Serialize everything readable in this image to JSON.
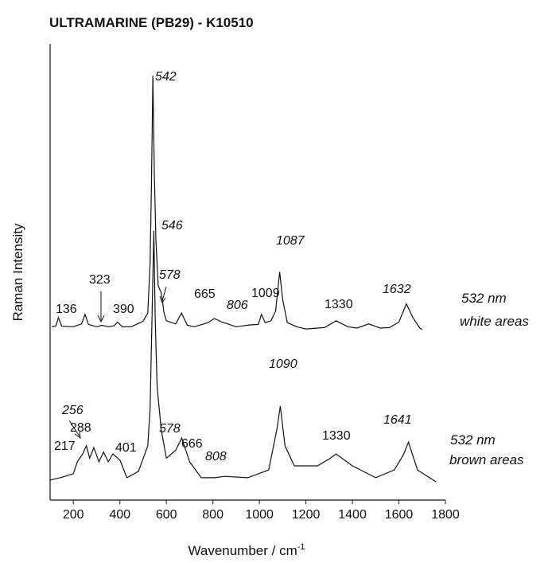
{
  "chart_data": {
    "type": "line",
    "title": "ULTRAMARINE (PB29) - K10510",
    "xlabel": "Wavenumber / cm",
    "xlabel_sup": "-1",
    "ylabel": "Raman Intensity",
    "xlim": [
      100,
      1800
    ],
    "ylim": [
      0,
      100
    ],
    "xticks": [
      200,
      400,
      600,
      800,
      1000,
      1200,
      1400,
      1600,
      1800
    ],
    "series": [
      {
        "name": "532 nm",
        "area": "white areas",
        "color": "#111111",
        "x": [
          107,
          125,
          136,
          150,
          200,
          235,
          250,
          265,
          300,
          323,
          350,
          375,
          390,
          410,
          450,
          500,
          520,
          530,
          536,
          542,
          548,
          555,
          565,
          578,
          590,
          600,
          640,
          665,
          690,
          720,
          780,
          806,
          840,
          900,
          960,
          995,
          1009,
          1025,
          1050,
          1070,
          1087,
          1100,
          1120,
          1160,
          1200,
          1280,
          1330,
          1380,
          1420,
          1470,
          1520,
          1560,
          1600,
          1632,
          1660,
          1690,
          1700
        ],
        "values": [
          38.0,
          38.2,
          40.0,
          38.1,
          38.0,
          38.6,
          40.7,
          38.5,
          38.0,
          38.3,
          38.0,
          38.2,
          39.0,
          38.0,
          38.0,
          39.2,
          41.0,
          52.0,
          70.0,
          93.0,
          72.0,
          57.0,
          47.0,
          45.4,
          41.0,
          39.3,
          38.6,
          41.0,
          38.3,
          38.0,
          38.9,
          39.8,
          39.0,
          38.0,
          38.4,
          38.5,
          40.7,
          38.9,
          39.3,
          41.5,
          50.0,
          44.0,
          38.9,
          38.0,
          37.5,
          37.8,
          39.3,
          38.0,
          37.7,
          38.6,
          37.7,
          37.8,
          39.0,
          43.0,
          40.0,
          37.7,
          37.4
        ],
        "peak_labels": [
          "136",
          "323",
          "390",
          "542",
          "546",
          "578",
          "665",
          "806",
          "1009",
          "1087",
          "1330",
          "1632"
        ]
      },
      {
        "name": "532 nm",
        "area": "brown areas",
        "color": "#111111",
        "x": [
          100,
          150,
          200,
          217,
          240,
          256,
          270,
          288,
          310,
          330,
          350,
          370,
          401,
          430,
          480,
          520,
          530,
          538,
          546,
          552,
          560,
          578,
          600,
          640,
          666,
          700,
          750,
          808,
          850,
          950,
          1040,
          1075,
          1090,
          1110,
          1150,
          1250,
          1300,
          1330,
          1400,
          1500,
          1580,
          1620,
          1641,
          1680,
          1760
        ],
        "values": [
          4.4,
          5.0,
          5.8,
          8.4,
          10.1,
          11.9,
          9.2,
          11.5,
          8.4,
          10.5,
          8.4,
          10.1,
          8.7,
          4.9,
          6.3,
          11.9,
          20.0,
          39.8,
          59.0,
          40.0,
          25.0,
          15.4,
          9.2,
          10.9,
          13.6,
          8.4,
          4.9,
          4.9,
          5.2,
          4.9,
          6.6,
          15.4,
          20.6,
          11.9,
          7.5,
          7.5,
          9.0,
          10.1,
          7.5,
          4.9,
          6.6,
          10.0,
          12.7,
          6.6,
          4.0
        ],
        "peak_labels": [
          "256",
          "288",
          "217",
          "401",
          "578",
          "666",
          "808",
          "1090",
          "1330",
          "1641"
        ]
      }
    ]
  }
}
